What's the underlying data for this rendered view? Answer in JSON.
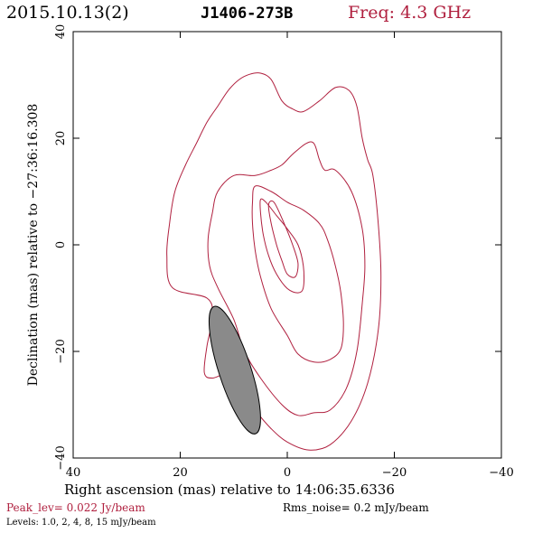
{
  "header": {
    "date": "2015.10.13(2)",
    "source": "J1406-273B",
    "freq": "Freq: 4.3 GHz"
  },
  "footer": {
    "peak": "Peak_lev=  0.022 Jy/beam",
    "rms": "Rms_noise=  0.2 mJy/beam",
    "levels": "Levels: 1.0,   2,   4,   8,  15 mJy/beam"
  },
  "colors": {
    "contour": "#b0203f",
    "accent_text": "#b0203f",
    "beam_fill": "#8a8a8a",
    "frame": "#000000"
  },
  "chart_data": {
    "type": "contour",
    "xlabel": "Right ascension (mas) relative to 14:06:35.6336",
    "ylabel": "Declination (mas) relative to −27:36:16.308",
    "xlim": [
      40,
      -40
    ],
    "ylim": [
      -40,
      40
    ],
    "xticks": [
      40,
      20,
      0,
      -20,
      -40
    ],
    "yticks": [
      -40,
      -20,
      0,
      20,
      40
    ],
    "xtick_labels": [
      "40",
      "20",
      "0",
      "−20",
      "−40"
    ],
    "ytick_labels": [
      "−40",
      "−20",
      "0",
      "20",
      "40"
    ],
    "levels_mJy": [
      1.0,
      2,
      4,
      8,
      15
    ],
    "contours": [
      {
        "level": 1.0,
        "points": [
          [
            -4,
            -38.5
          ],
          [
            -8,
            -37.5
          ],
          [
            -12,
            -33
          ],
          [
            -15,
            -26
          ],
          [
            -17,
            -16
          ],
          [
            -17.5,
            -6
          ],
          [
            -17,
            4
          ],
          [
            -16,
            13
          ],
          [
            -15,
            16
          ],
          [
            -14,
            20
          ],
          [
            -13,
            26
          ],
          [
            -11.5,
            29
          ],
          [
            -9,
            29.5
          ],
          [
            -6,
            27
          ],
          [
            -3,
            25
          ],
          [
            -1,
            25.5
          ],
          [
            1,
            27
          ],
          [
            3,
            31
          ],
          [
            5,
            32.2
          ],
          [
            7,
            32
          ],
          [
            9,
            31
          ],
          [
            11,
            29
          ],
          [
            13,
            26
          ],
          [
            15,
            23
          ],
          [
            17,
            19
          ],
          [
            19,
            15
          ],
          [
            21,
            10
          ],
          [
            22,
            4
          ],
          [
            22.5,
            -2
          ],
          [
            21.5,
            -8
          ],
          [
            15,
            -10
          ],
          [
            14,
            -13.5
          ],
          [
            15,
            -19
          ],
          [
            15.5,
            -24
          ],
          [
            14,
            -25
          ],
          [
            11,
            -24
          ],
          [
            9,
            -25
          ],
          [
            8,
            -28
          ],
          [
            6,
            -31
          ],
          [
            3,
            -34.5
          ],
          [
            0,
            -37
          ]
        ]
      },
      {
        "level": 2,
        "points": [
          [
            -5,
            -31.5
          ],
          [
            -8,
            -31
          ],
          [
            -11,
            -27
          ],
          [
            -13,
            -20
          ],
          [
            -14,
            -11
          ],
          [
            -14.5,
            -4
          ],
          [
            -14,
            3
          ],
          [
            -12,
            10
          ],
          [
            -9,
            14
          ],
          [
            -7,
            14
          ],
          [
            -6,
            16
          ],
          [
            -5,
            19
          ],
          [
            -3.5,
            19
          ],
          [
            -1,
            17
          ],
          [
            1,
            15
          ],
          [
            3,
            14
          ],
          [
            6,
            13
          ],
          [
            10,
            13
          ],
          [
            13,
            10
          ],
          [
            14,
            6
          ],
          [
            14.8,
            1
          ],
          [
            14.5,
            -4
          ],
          [
            13,
            -8
          ],
          [
            10,
            -14
          ],
          [
            8,
            -20
          ],
          [
            5,
            -25
          ],
          [
            1,
            -30
          ],
          [
            -2,
            -32
          ]
        ]
      },
      {
        "level": 4,
        "points": [
          [
            -5,
            -22
          ],
          [
            -8,
            -21.5
          ],
          [
            -10,
            -19.5
          ],
          [
            -10.5,
            -15
          ],
          [
            -10,
            -9
          ],
          [
            -9,
            -4
          ],
          [
            -7.5,
            1
          ],
          [
            -6,
            4
          ],
          [
            -3,
            6.5
          ],
          [
            0,
            8
          ],
          [
            3,
            10
          ],
          [
            6,
            11
          ],
          [
            6.5,
            8
          ],
          [
            6.5,
            4
          ],
          [
            6,
            -1
          ],
          [
            5,
            -6
          ],
          [
            3,
            -12
          ],
          [
            0,
            -17
          ],
          [
            -2,
            -20.5
          ]
        ]
      },
      {
        "level": 8,
        "points": [
          [
            -2,
            -9
          ],
          [
            -3,
            -8
          ],
          [
            -3,
            -4
          ],
          [
            -2,
            0
          ],
          [
            0,
            3
          ],
          [
            2,
            5.5
          ],
          [
            4,
            8
          ],
          [
            5,
            8.5
          ],
          [
            5,
            6
          ],
          [
            4.5,
            2
          ],
          [
            3.5,
            -2
          ],
          [
            2,
            -5.5
          ],
          [
            0,
            -8.2
          ]
        ]
      },
      {
        "level": 15,
        "points": [
          [
            -1.5,
            -6
          ],
          [
            -2,
            -3.5
          ],
          [
            -1,
            0
          ],
          [
            0.8,
            4.5
          ],
          [
            2.5,
            8
          ],
          [
            3.5,
            7.5
          ],
          [
            3,
            4
          ],
          [
            2,
            0
          ],
          [
            1,
            -3
          ],
          [
            0,
            -5.5
          ]
        ]
      }
    ],
    "beam": {
      "center": [
        9.8,
        -23.5
      ],
      "major_mas": 25,
      "minor_mas": 6,
      "pa_deg": -18
    }
  }
}
